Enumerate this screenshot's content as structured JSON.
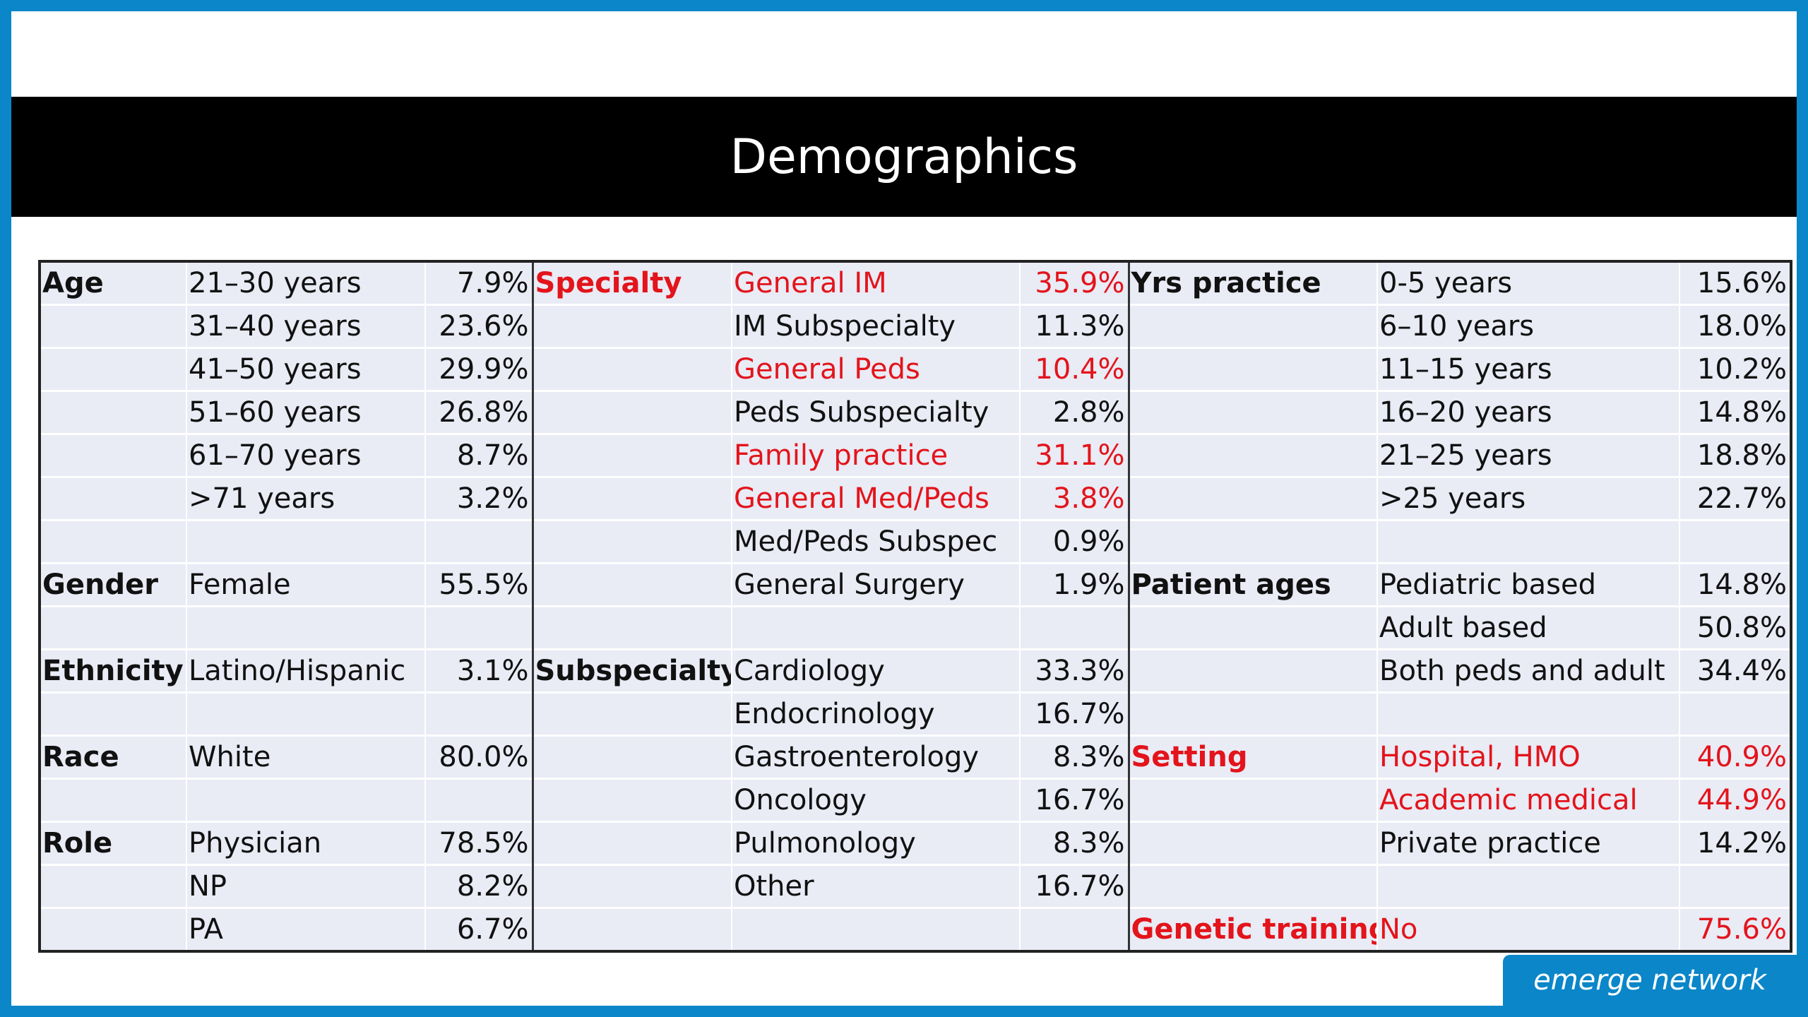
{
  "slide": {
    "title": "Demographics",
    "logo_text": "emerge network"
  },
  "table": {
    "rows": [
      [
        "Age",
        "21–30 years",
        "7.9%",
        "Specialty",
        "General IM",
        "35.9%",
        "Yrs practice",
        "0-5 years",
        "15.6%"
      ],
      [
        "",
        "31–40 years",
        "23.6%",
        "",
        "IM Subspecialty",
        "11.3%",
        "",
        "6–10 years",
        "18.0%"
      ],
      [
        "",
        "41–50 years",
        "29.9%",
        "",
        "General Peds",
        "10.4%",
        "",
        "11–15 years",
        "10.2%"
      ],
      [
        "",
        "51–60 years",
        "26.8%",
        "",
        "Peds Subspecialty",
        "2.8%",
        "",
        "16–20 years",
        "14.8%"
      ],
      [
        "",
        "61–70 years",
        "8.7%",
        "",
        "Family practice",
        "31.1%",
        "",
        "21–25 years",
        "18.8%"
      ],
      [
        "",
        ">71 years",
        "3.2%",
        "",
        "General Med/Peds",
        "3.8%",
        "",
        ">25 years",
        "22.7%"
      ],
      [
        "",
        "",
        "",
        "",
        "Med/Peds Subspec",
        "0.9%",
        "",
        "",
        ""
      ],
      [
        "Gender",
        "Female",
        "55.5%",
        "",
        "General Surgery",
        "1.9%",
        "Patient ages",
        "Pediatric based",
        "14.8%"
      ],
      [
        "",
        "",
        "",
        "",
        "",
        "",
        "",
        "Adult based",
        "50.8%"
      ],
      [
        "Ethnicity",
        "Latino/Hispanic",
        "3.1%",
        "Subspecialty",
        "Cardiology",
        "33.3%",
        "",
        "Both peds and adult",
        "34.4%"
      ],
      [
        "",
        "",
        "",
        "",
        "Endocrinology",
        "16.7%",
        "",
        "",
        ""
      ],
      [
        "Race",
        "White",
        "80.0%",
        "",
        "Gastroenterology",
        "8.3%",
        "Setting",
        "Hospital, HMO",
        "40.9%"
      ],
      [
        "",
        "",
        "",
        "",
        "Oncology",
        "16.7%",
        "",
        "Academic medical",
        "44.9%"
      ],
      [
        "Role",
        "Physician",
        "78.5%",
        "",
        "Pulmonology",
        "8.3%",
        "",
        "Private practice",
        "14.2%"
      ],
      [
        "",
        "NP",
        "8.2%",
        "",
        "Other",
        "16.7%",
        "",
        "",
        ""
      ],
      [
        "",
        "PA",
        "6.7%",
        "",
        "",
        "",
        "Genetic training",
        "No",
        "75.6%"
      ]
    ],
    "highlighted_red": [
      "Specialty",
      "General IM",
      "35.9%",
      "General Peds",
      "10.4%",
      "Family practice",
      "31.1%",
      "General Med/Peds",
      "3.8%",
      "Setting",
      "Hospital, HMO",
      "40.9%",
      "Academic medical",
      "44.9%",
      "Genetic training",
      "No",
      "75.6%"
    ],
    "colors": {
      "highlight": "#e3141b",
      "table_bg": "#e9ebf5",
      "accent": "#0a86c9"
    }
  }
}
